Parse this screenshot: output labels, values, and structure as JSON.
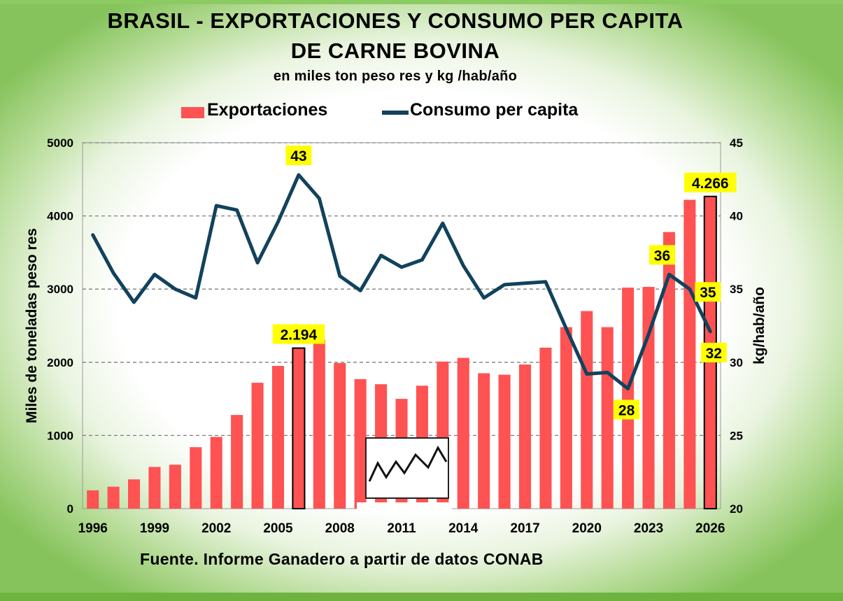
{
  "title_line1": "BRASIL - EXPORTACIONES Y CONSUMO PER CAPITA",
  "title_line2": "DE CARNE BOVINA",
  "subtitle": "en miles ton peso res y kg /hab/año",
  "legend": {
    "bars": "Exportaciones",
    "line": "Consumo per capita"
  },
  "source": "Fuente. Informe Ganadero a partir de datos CONAB",
  "colors": {
    "bars": "#ff5252",
    "line": "#12425c",
    "callout_bg": "#ffff00",
    "grid": "#7f7f7f"
  },
  "chart_data": {
    "type": "bar+line",
    "x": [
      1996,
      1997,
      1998,
      1999,
      2000,
      2001,
      2002,
      2003,
      2004,
      2005,
      2006,
      2007,
      2008,
      2009,
      2010,
      2011,
      2012,
      2013,
      2014,
      2015,
      2016,
      2017,
      2018,
      2019,
      2020,
      2021,
      2022,
      2023,
      2024,
      2025,
      2026
    ],
    "x_tick_labels": [
      "1996",
      "1999",
      "2002",
      "2005",
      "2008",
      "2011",
      "2014",
      "2017",
      "2020",
      "2023",
      "2026"
    ],
    "series": [
      {
        "name": "Exportaciones",
        "type": "bar",
        "axis": "left",
        "values": [
          250,
          300,
          400,
          570,
          600,
          840,
          980,
          1280,
          1720,
          1950,
          2194,
          2310,
          1990,
          1770,
          1700,
          1500,
          1680,
          2010,
          2060,
          1850,
          1830,
          1970,
          2200,
          2480,
          2700,
          2480,
          3020,
          3030,
          3780,
          4220,
          4266
        ]
      },
      {
        "name": "Consumo per capita",
        "type": "line",
        "axis": "right",
        "values": [
          38.7,
          36.1,
          34.1,
          36.0,
          35.0,
          34.4,
          40.7,
          40.4,
          36.8,
          39.6,
          42.8,
          41.2,
          35.9,
          34.9,
          37.3,
          36.5,
          37.0,
          39.5,
          36.6,
          34.4,
          35.3,
          35.4,
          35.5,
          32.3,
          29.2,
          29.3,
          28.2,
          31.9,
          36.0,
          35.0,
          32.1
        ]
      }
    ],
    "y_left": {
      "label": "Miles de toneladas peso res",
      "min": 0,
      "max": 5000,
      "ticks": [
        "0",
        "1000",
        "2000",
        "3000",
        "4000",
        "5000"
      ]
    },
    "y_right": {
      "label": "kg/hab/año",
      "min": 20,
      "max": 45,
      "ticks": [
        "20",
        "25",
        "30",
        "35",
        "40",
        "45"
      ]
    },
    "grid": "horizontal dashed",
    "highlighted_bars": [
      2006,
      2026
    ],
    "annotations": [
      {
        "text": "43",
        "year": 2006,
        "series": "Consumo per capita"
      },
      {
        "text": "2.194",
        "year": 2006,
        "series": "Exportaciones"
      },
      {
        "text": "4.266",
        "year": 2026,
        "series": "Exportaciones"
      },
      {
        "text": "36",
        "year": 2024,
        "series": "Consumo per capita"
      },
      {
        "text": "35",
        "year": 2025,
        "series": "Consumo per capita"
      },
      {
        "text": "32",
        "year": 2026,
        "series": "Consumo per capita"
      },
      {
        "text": "28",
        "year": 2022,
        "series": "Consumo per capita"
      }
    ]
  }
}
